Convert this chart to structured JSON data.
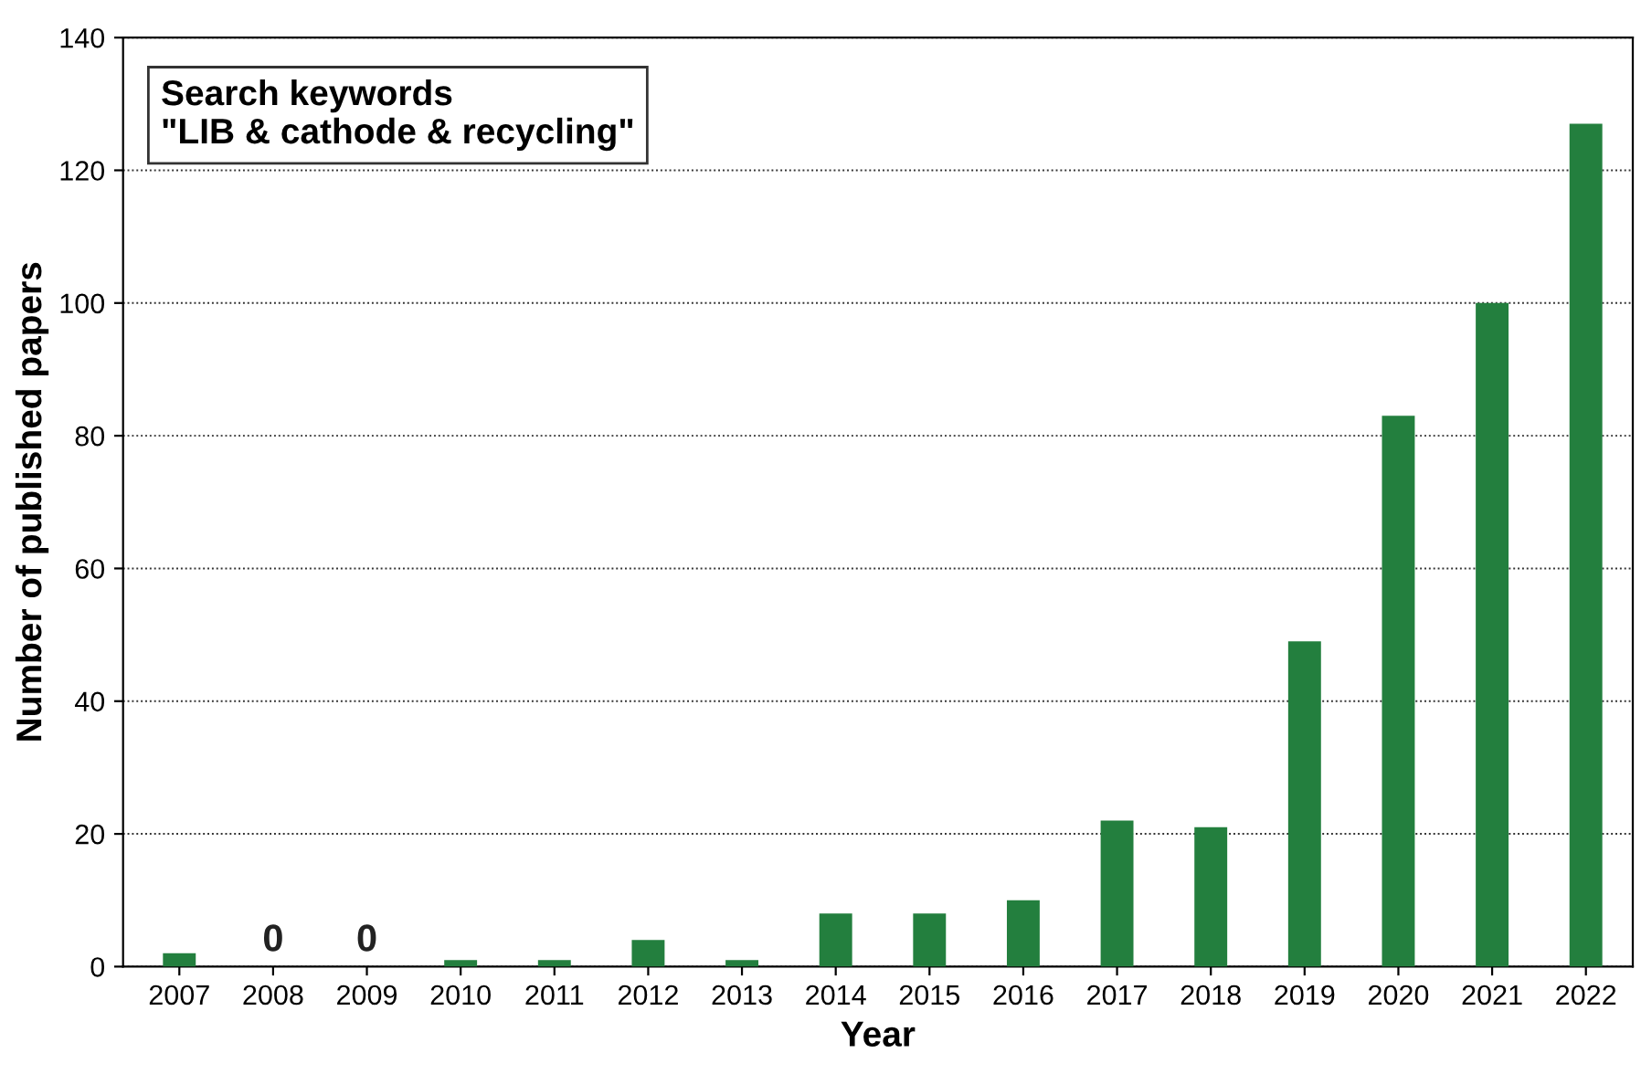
{
  "chart_data": {
    "type": "bar",
    "xlabel": "Year",
    "ylabel": "Number of published papers",
    "categories": [
      "2007",
      "2008",
      "2009",
      "2010",
      "2011",
      "2012",
      "2013",
      "2014",
      "2015",
      "2016",
      "2017",
      "2018",
      "2019",
      "2020",
      "2021",
      "2022"
    ],
    "values": [
      2,
      0,
      0,
      1,
      1,
      4,
      1,
      8,
      8,
      10,
      22,
      21,
      49,
      83,
      100,
      127
    ],
    "value_labels": [
      null,
      "0",
      "0",
      null,
      null,
      null,
      null,
      null,
      null,
      null,
      null,
      null,
      null,
      null,
      null,
      null
    ],
    "color": "#237f3e",
    "ylim": [
      0,
      140
    ],
    "yticks": [
      0,
      20,
      40,
      60,
      80,
      100,
      120,
      140
    ],
    "grid": "y",
    "annotations": [
      "Search keywords\n\"LIB & cathode & recycling\""
    ]
  }
}
